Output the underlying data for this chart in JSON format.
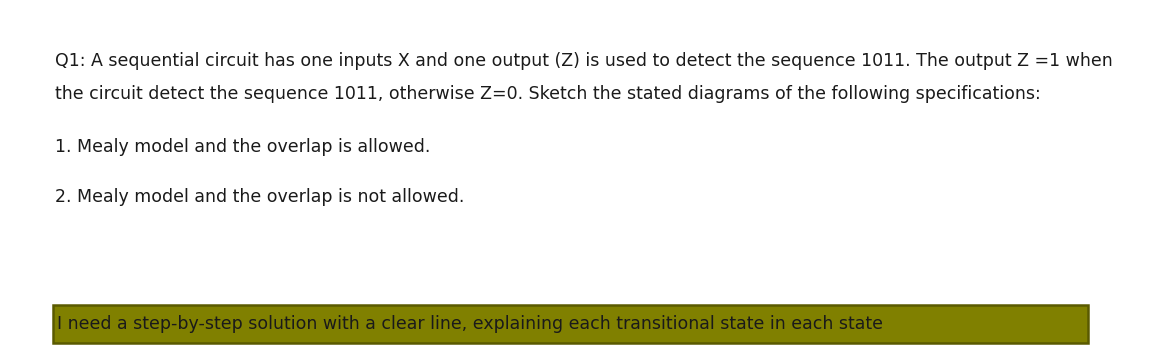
{
  "bg_color": "#ffffff",
  "line1": "Q1: A sequential circuit has one inputs X and one output (Z) is used to detect the sequence 1011. The output Z =1 when",
  "line2": "the circuit detect the sequence 1011, otherwise Z=0. Sketch the stated diagrams of the following specifications:",
  "line3": "1. Mealy model and the overlap is allowed.",
  "line4": "2. Mealy model and the overlap is not allowed.",
  "highlight_text": "I need a step-by-step solution with a clear line, explaining each transitional state in each state",
  "highlight_bg": "#808000",
  "highlight_border": "#5a5a00",
  "text_color": "#1a1a1a",
  "highlight_text_color": "#1a1a1a",
  "font_size_main": 12.5,
  "font_size_highlight": 12.5,
  "fig_width": 11.7,
  "fig_height": 3.61,
  "dpi": 100
}
